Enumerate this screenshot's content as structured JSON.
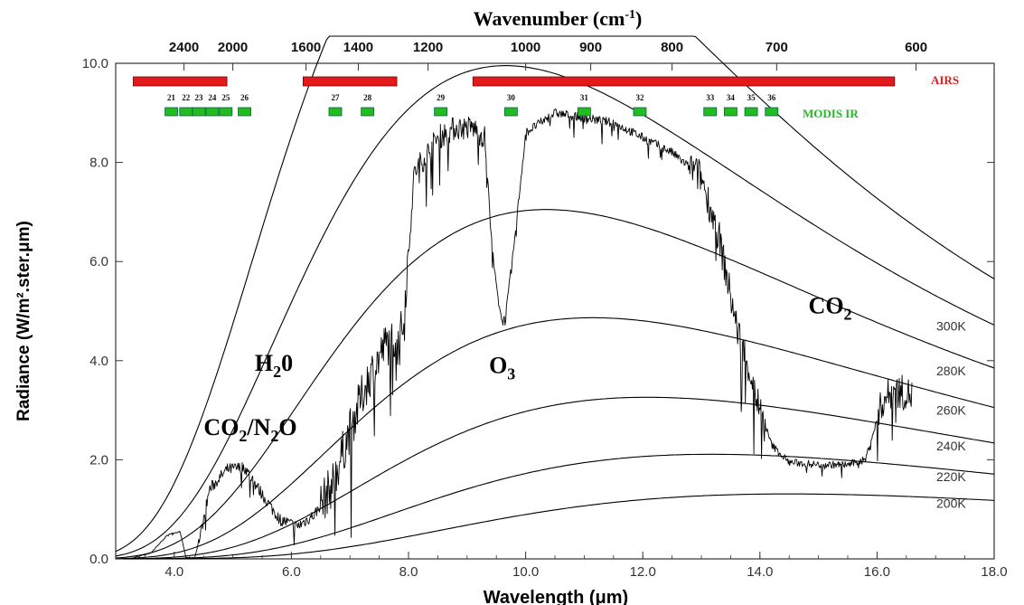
{
  "chart_data": {
    "type": "line",
    "xlabel": "Wavelength (μm)",
    "ylabel": "Radiance (W/m².ster.μm)",
    "top_axis_title": "Wavenumber (cm⁻¹)",
    "xlim": [
      3.0,
      18.0
    ],
    "ylim": [
      0.0,
      10.0
    ],
    "x_ticks": [
      "4.0",
      "6.0",
      "8.0",
      "10.0",
      "12.0",
      "14.0",
      "16.0",
      "18.0"
    ],
    "y_ticks": [
      "0.0",
      "2.0",
      "4.0",
      "6.0",
      "8.0",
      "10.0"
    ],
    "top_ticks": [
      {
        "label": "2400",
        "wavenumber": 2400
      },
      {
        "label": "2000",
        "wavenumber": 2000
      },
      {
        "label": "1600",
        "wavenumber": 1600
      },
      {
        "label": "1400",
        "wavenumber": 1400
      },
      {
        "label": "1200",
        "wavenumber": 1200
      },
      {
        "label": "1000",
        "wavenumber": 1000
      },
      {
        "label": "900",
        "wavenumber": 900
      },
      {
        "label": "800",
        "wavenumber": 800
      },
      {
        "label": "700",
        "wavenumber": 700
      },
      {
        "label": "600",
        "wavenumber": 600
      }
    ],
    "planck_series": [
      {
        "name": "",
        "temperature_K": 320
      },
      {
        "name": "300K",
        "temperature_K": 300
      },
      {
        "name": "280K",
        "temperature_K": 280
      },
      {
        "name": "260K",
        "temperature_K": 260
      },
      {
        "name": "240K",
        "temperature_K": 240
      },
      {
        "name": "220K",
        "temperature_K": 220
      },
      {
        "name": "200K",
        "temperature_K": 200
      }
    ],
    "spectrum_anchors": [
      [
        3.3,
        0.02
      ],
      [
        3.6,
        0.12
      ],
      [
        3.9,
        0.5
      ],
      [
        4.1,
        0.55
      ],
      [
        4.2,
        0.03
      ],
      [
        4.35,
        0.02
      ],
      [
        4.45,
        0.5
      ],
      [
        4.6,
        1.4
      ],
      [
        4.9,
        1.8
      ],
      [
        5.2,
        1.85
      ],
      [
        5.5,
        1.3
      ],
      [
        5.8,
        0.8
      ],
      [
        6.1,
        0.65
      ],
      [
        6.4,
        0.9
      ],
      [
        6.7,
        1.5
      ],
      [
        7.0,
        2.6
      ],
      [
        7.3,
        3.6
      ],
      [
        7.6,
        4.3
      ],
      [
        7.9,
        4.6
      ],
      [
        8.1,
        7.8
      ],
      [
        8.5,
        8.5
      ],
      [
        8.8,
        8.7
      ],
      [
        9.1,
        8.7
      ],
      [
        9.3,
        8.5
      ],
      [
        9.45,
        6.0
      ],
      [
        9.55,
        5.0
      ],
      [
        9.65,
        4.8
      ],
      [
        9.8,
        6.3
      ],
      [
        10.0,
        8.6
      ],
      [
        10.5,
        9.0
      ],
      [
        11.0,
        8.9
      ],
      [
        11.5,
        8.8
      ],
      [
        12.0,
        8.5
      ],
      [
        12.5,
        8.2
      ],
      [
        13.0,
        7.7
      ],
      [
        13.3,
        6.5
      ],
      [
        13.6,
        4.7
      ],
      [
        13.8,
        3.9
      ],
      [
        14.0,
        3.0
      ],
      [
        14.2,
        2.3
      ],
      [
        14.5,
        1.95
      ],
      [
        15.0,
        1.9
      ],
      [
        15.5,
        1.9
      ],
      [
        15.8,
        2.0
      ],
      [
        16.1,
        3.2
      ],
      [
        16.3,
        3.4
      ],
      [
        16.6,
        3.3
      ]
    ],
    "airs_bands_um": [
      [
        3.3,
        4.9
      ],
      [
        6.2,
        7.8
      ],
      [
        9.1,
        16.3
      ]
    ],
    "modis_bands": [
      {
        "label": "21",
        "um": 3.95
      },
      {
        "label": "22",
        "um": 4.2
      },
      {
        "label": "23",
        "um": 4.42
      },
      {
        "label": "24",
        "um": 4.65
      },
      {
        "label": "25",
        "um": 4.88
      },
      {
        "label": "26",
        "um": 5.2
      },
      {
        "label": "27",
        "um": 6.75
      },
      {
        "label": "28",
        "um": 7.3
      },
      {
        "label": "29",
        "um": 8.55
      },
      {
        "label": "30",
        "um": 9.75
      },
      {
        "label": "31",
        "um": 11.0
      },
      {
        "label": "32",
        "um": 11.95
      },
      {
        "label": "33",
        "um": 13.15
      },
      {
        "label": "34",
        "um": 13.5
      },
      {
        "label": "35",
        "um": 13.85
      },
      {
        "label": "36",
        "um": 14.2
      }
    ],
    "airs_label": "AIRS",
    "modis_label": "MODIS IR",
    "molecule_labels": {
      "co2_n2o": {
        "main": "CO",
        "sub1": "2",
        "mid": "/N",
        "sub2": "2",
        "end": "O",
        "at_um": 5.3,
        "at_y": 2.5
      },
      "h2o": {
        "main": "H",
        "sub1": "2",
        "end": "0",
        "at_um": 5.7,
        "at_y": 3.8
      },
      "o3": {
        "main": "O",
        "sub1": "3",
        "at_um": 9.6,
        "at_y": 3.75
      },
      "co2": {
        "main": "CO",
        "sub1": "2",
        "at_um": 15.2,
        "at_y": 4.95
      }
    },
    "colors": {
      "airs": "#e31a1c",
      "modis": "#22bb22",
      "curve": "#000000",
      "frame": "#333333"
    }
  }
}
